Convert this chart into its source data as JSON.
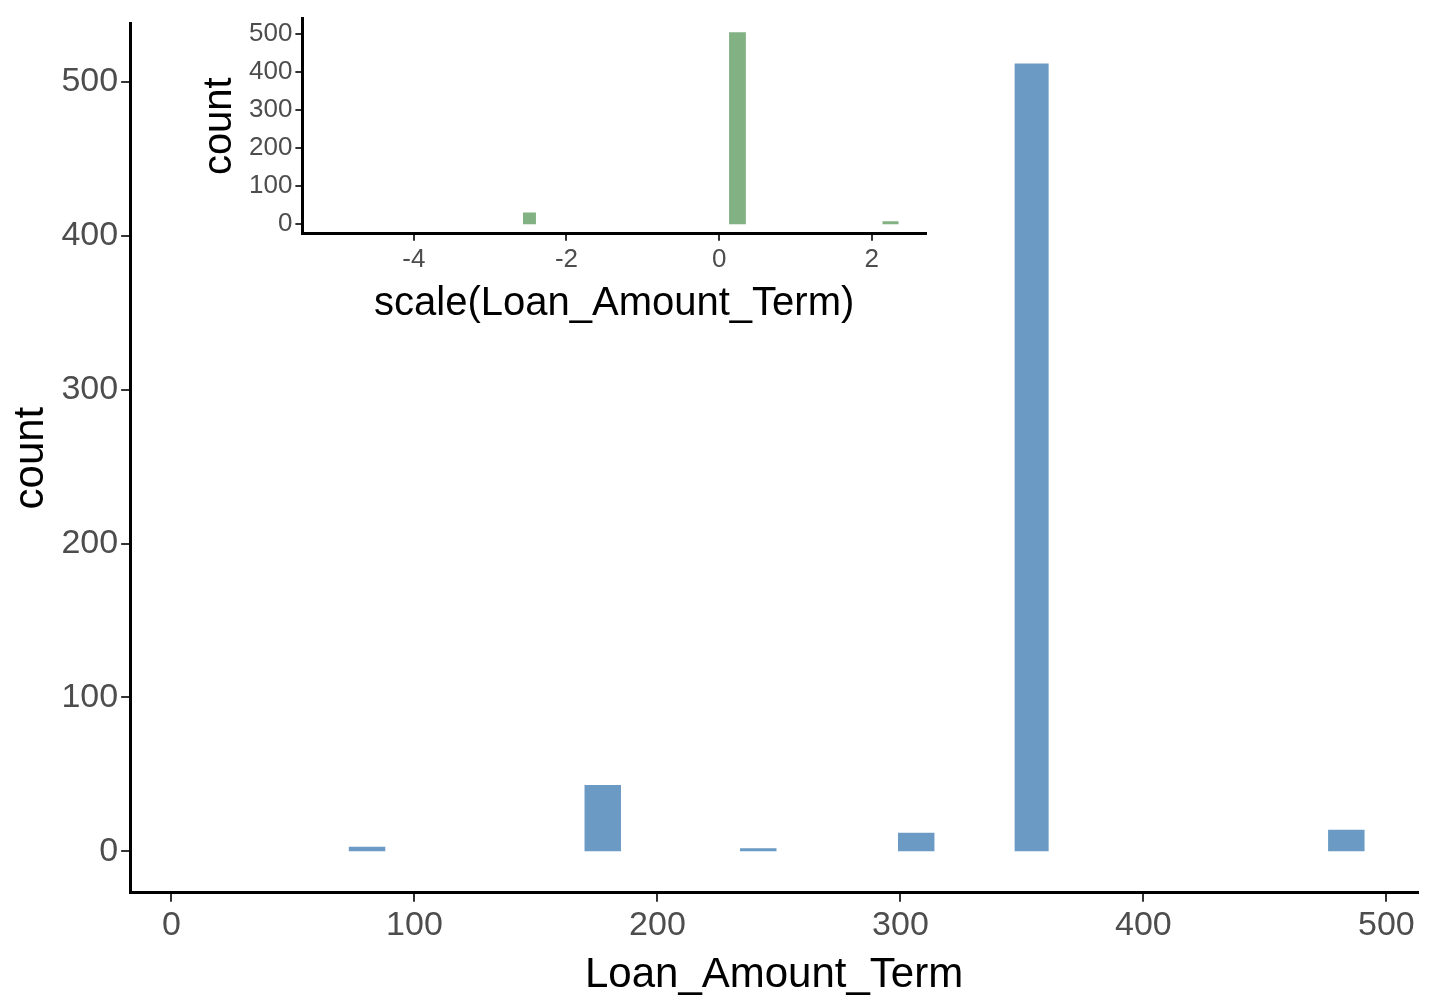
{
  "chart_data": [
    {
      "type": "histogram",
      "xlabel": "Loan_Amount_Term",
      "ylabel": "count",
      "color": "#6b9ac4",
      "bins": [
        73,
        88,
        170,
        185,
        234,
        249,
        299,
        314,
        347,
        361,
        476,
        491
      ],
      "values": [
        3,
        0,
        43,
        0,
        2,
        0,
        12,
        0,
        512,
        0,
        14
      ],
      "xlim": [
        -17,
        513
      ],
      "xticks": [
        0,
        100,
        200,
        300,
        400,
        500
      ],
      "ylim": [
        -27,
        538
      ],
      "yticks": [
        0,
        100,
        200,
        300,
        400,
        500
      ]
    },
    {
      "type": "histogram",
      "xlabel": "scale(Loan_Amount_Term)",
      "ylabel": "count",
      "color": "#82b183",
      "bins": [
        -2.57,
        -2.4,
        0.13,
        0.35,
        2.14,
        2.35
      ],
      "values": [
        31,
        0,
        504,
        0,
        8
      ],
      "xlim": [
        -5.46,
        2.71
      ],
      "xticks": [
        -4,
        -2,
        0,
        2
      ],
      "ylim": [
        -25,
        540
      ],
      "yticks": [
        0,
        100,
        200,
        300,
        400,
        500
      ]
    }
  ]
}
